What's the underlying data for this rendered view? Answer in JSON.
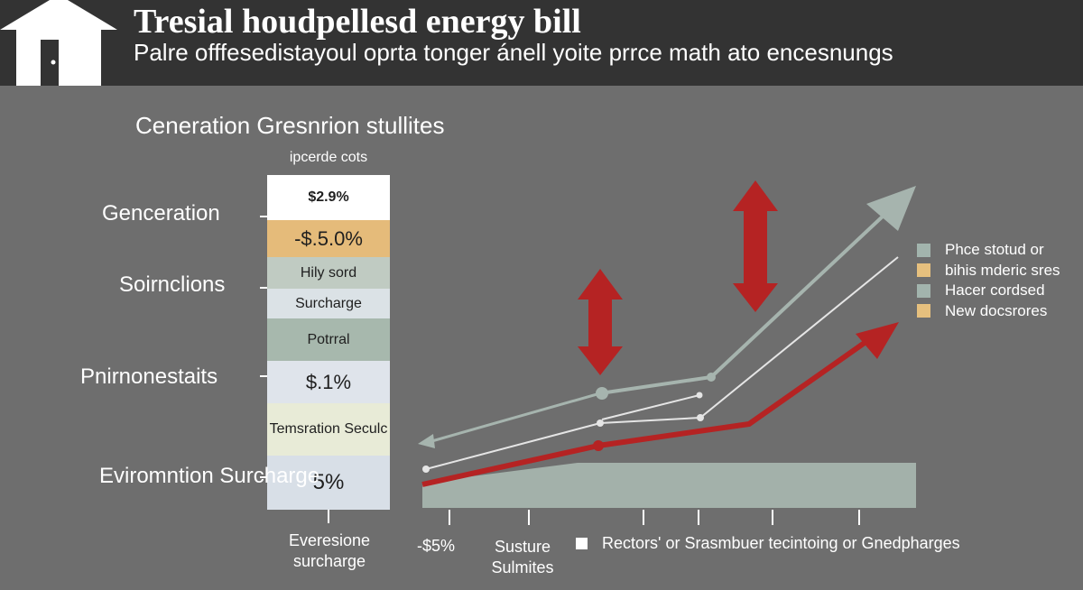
{
  "header": {
    "title": "Tresial houdpellesd energy bill",
    "subtitle": "Palre offfesedistayoul oprta tonger ánell yoite prrce math ato encesnungs",
    "house_icon": "house-icon"
  },
  "chart_data": [
    {
      "type": "bar",
      "title": "Ceneration Gresnrion stullites",
      "subtitle": "ipcerde cots",
      "categories": [
        "Genceration",
        "Soirnclions",
        "Pnirnonestaits",
        "Eviromntion Surcharge"
      ],
      "segments": [
        {
          "label": "$2.9%",
          "color": "#ffffff"
        },
        {
          "label": "-$.5.0%",
          "color": "#e5bb7a"
        },
        {
          "label": "Hily sord",
          "color": "#c0cbc2"
        },
        {
          "label": "Surcharge",
          "color": "#dbe2e6"
        },
        {
          "label": "Potrral",
          "color": "#a7b8ad"
        },
        {
          "label": "$.1%",
          "color": "#dfe4eb"
        },
        {
          "label": "Temsration Seculc",
          "color": "#e8ebd7"
        },
        {
          "label": "5%",
          "color": "#d8dfe7"
        }
      ],
      "xlabel": "Everesione surcharge"
    },
    {
      "type": "line",
      "x": [
        "-$5%",
        "Susture Sulmites"
      ],
      "series": [],
      "legend": {
        "placement": "right",
        "entries": [
          {
            "label": "Phce stotud or",
            "color": "#a2b4ad"
          },
          {
            "label": "bihis mderic sres",
            "color": "#e6c07e"
          },
          {
            "label": "Hacer cordsed",
            "color": "#a2b4ad"
          },
          {
            "label": "New docsrores",
            "color": "#e6c07e"
          }
        ]
      },
      "annotation": "Rectors' or Srasmbuer tecintoing or Gnedpharges",
      "colors": {
        "red": "#b52323",
        "sage": "#a6b4ae",
        "light": "#e5e5e5",
        "area": "#a3b1aa"
      }
    }
  ]
}
